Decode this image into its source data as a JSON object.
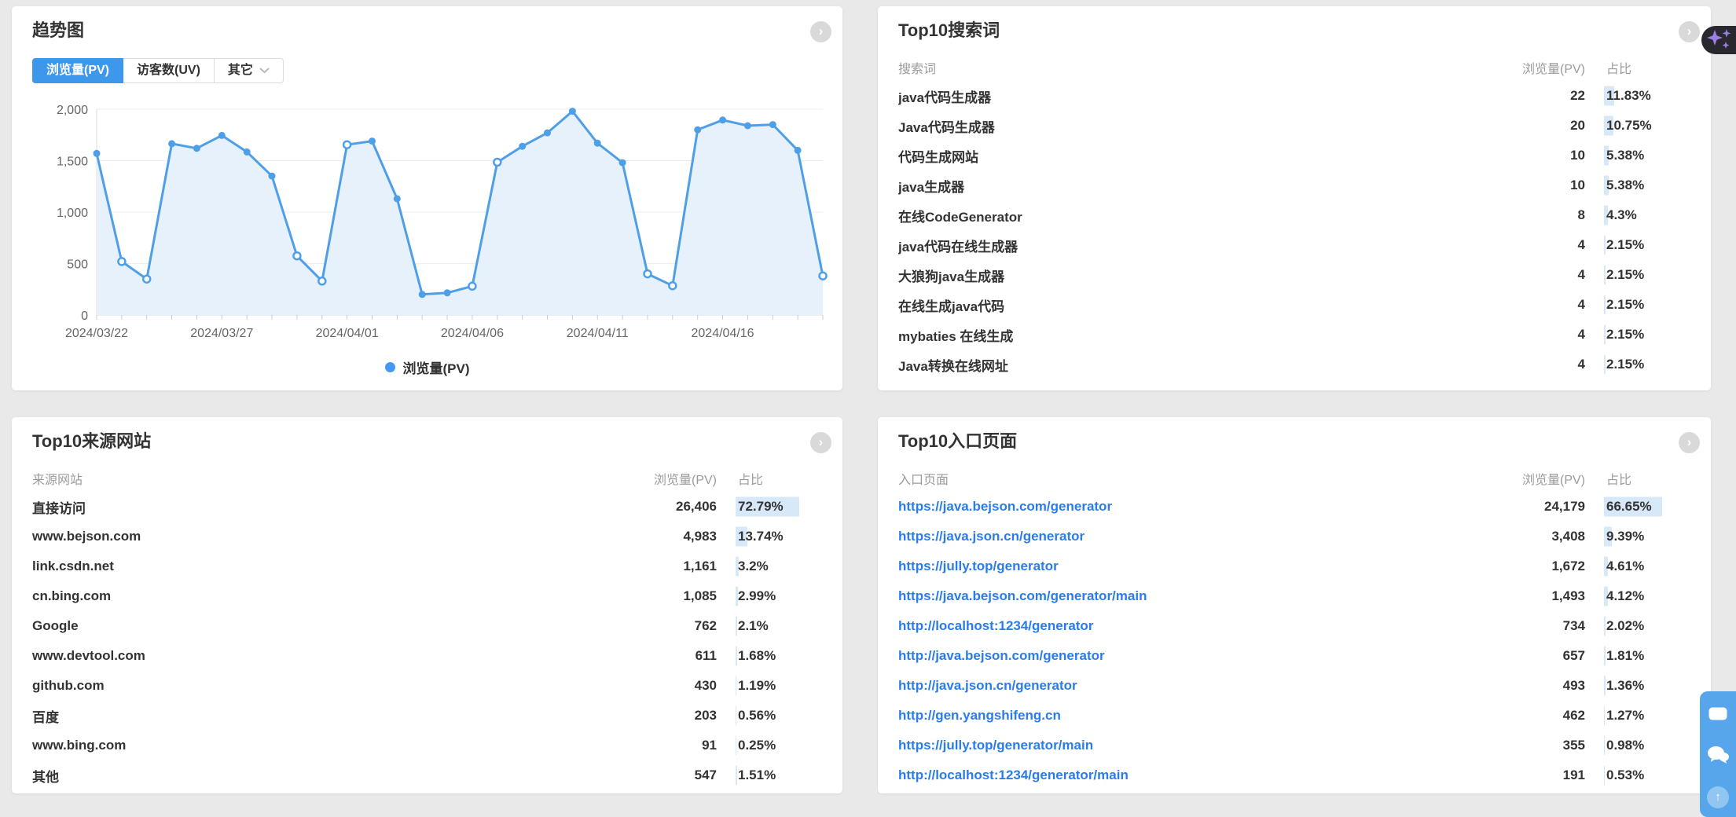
{
  "trend_panel": {
    "title": "趋势图",
    "tabs": [
      {
        "label": "浏览量(PV)",
        "active": true
      },
      {
        "label": "访客数(UV)",
        "active": false
      },
      {
        "label": "其它",
        "active": false,
        "dropdown": true
      }
    ],
    "legend": "浏览量(PV)",
    "chart_data": {
      "type": "line",
      "title": "趋势图",
      "x": [
        "2024/03/22",
        "2024/03/23",
        "2024/03/24",
        "2024/03/25",
        "2024/03/26",
        "2024/03/27",
        "2024/03/28",
        "2024/03/29",
        "2024/03/30",
        "2024/03/31",
        "2024/04/01",
        "2024/04/02",
        "2024/04/03",
        "2024/04/04",
        "2024/04/05",
        "2024/04/06",
        "2024/04/07",
        "2024/04/08",
        "2024/04/09",
        "2024/04/10",
        "2024/04/11",
        "2024/04/12",
        "2024/04/13",
        "2024/04/14",
        "2024/04/15",
        "2024/04/16",
        "2024/04/17",
        "2024/04/18",
        "2024/04/19",
        "2024/04/20"
      ],
      "x_tick_labels": [
        "2024/03/22",
        "2024/03/27",
        "2024/04/01",
        "2024/04/06",
        "2024/04/11",
        "2024/04/16"
      ],
      "x_tick_interval": 5,
      "series": [
        {
          "name": "浏览量(PV)",
          "values": [
            1570,
            520,
            350,
            1665,
            1620,
            1745,
            1585,
            1350,
            575,
            330,
            1655,
            1690,
            1130,
            200,
            215,
            280,
            1485,
            1640,
            1770,
            1980,
            1670,
            1480,
            400,
            285,
            1800,
            1895,
            1840,
            1850,
            1600,
            380
          ],
          "markers": [
            "filled",
            "hollow",
            "hollow",
            "filled",
            "filled",
            "filled",
            "filled",
            "filled",
            "hollow",
            "hollow",
            "hollow",
            "filled",
            "filled",
            "filled",
            "filled",
            "hollow",
            "hollow",
            "filled",
            "filled",
            "filled",
            "filled",
            "filled",
            "hollow",
            "hollow",
            "filled",
            "filled",
            "filled",
            "filled",
            "filled",
            "hollow"
          ]
        }
      ],
      "ylim": [
        0,
        2000
      ],
      "yticks": [
        0,
        500,
        1000,
        1500,
        2000
      ],
      "ytick_labels": [
        "0",
        "500",
        "1,000",
        "1,500",
        "2,000"
      ],
      "grid": "horizontal",
      "legend_position": "bottom",
      "colors": {
        "line": "#4f9fe8",
        "area": "#e7f1fb",
        "legend_dot": "#4599f2"
      }
    }
  },
  "search_panel": {
    "title": "Top10搜索词",
    "columns": {
      "name": "搜索词",
      "pv": "浏览量(PV)",
      "pct": "占比"
    },
    "rows": [
      {
        "name": "java代码生成器",
        "pv": "22",
        "pct": "11.83%",
        "pct_num": 11.83
      },
      {
        "name": "Java代码生成器",
        "pv": "20",
        "pct": "10.75%",
        "pct_num": 10.75
      },
      {
        "name": "代码生成网站",
        "pv": "10",
        "pct": "5.38%",
        "pct_num": 5.38
      },
      {
        "name": "java生成器",
        "pv": "10",
        "pct": "5.38%",
        "pct_num": 5.38
      },
      {
        "name": "在线CodeGenerator",
        "pv": "8",
        "pct": "4.3%",
        "pct_num": 4.3
      },
      {
        "name": "java代码在线生成器",
        "pv": "4",
        "pct": "2.15%",
        "pct_num": 2.15
      },
      {
        "name": "大狼狗java生成器",
        "pv": "4",
        "pct": "2.15%",
        "pct_num": 2.15
      },
      {
        "name": "在线生成java代码",
        "pv": "4",
        "pct": "2.15%",
        "pct_num": 2.15
      },
      {
        "name": "mybaties 在线生成",
        "pv": "4",
        "pct": "2.15%",
        "pct_num": 2.15
      },
      {
        "name": "Java转换在线网址",
        "pv": "4",
        "pct": "2.15%",
        "pct_num": 2.15
      }
    ]
  },
  "referrer_panel": {
    "title": "Top10来源网站",
    "columns": {
      "name": "来源网站",
      "pv": "浏览量(PV)",
      "pct": "占比"
    },
    "rows": [
      {
        "name": "直接访问",
        "pv": "26,406",
        "pct": "72.79%",
        "pct_num": 72.79
      },
      {
        "name": "www.bejson.com",
        "pv": "4,983",
        "pct": "13.74%",
        "pct_num": 13.74
      },
      {
        "name": "link.csdn.net",
        "pv": "1,161",
        "pct": "3.2%",
        "pct_num": 3.2
      },
      {
        "name": "cn.bing.com",
        "pv": "1,085",
        "pct": "2.99%",
        "pct_num": 2.99
      },
      {
        "name": "Google",
        "pv": "762",
        "pct": "2.1%",
        "pct_num": 2.1
      },
      {
        "name": "www.devtool.com",
        "pv": "611",
        "pct": "1.68%",
        "pct_num": 1.68
      },
      {
        "name": "github.com",
        "pv": "430",
        "pct": "1.19%",
        "pct_num": 1.19
      },
      {
        "name": "百度",
        "pv": "203",
        "pct": "0.56%",
        "pct_num": 0.56
      },
      {
        "name": "www.bing.com",
        "pv": "91",
        "pct": "0.25%",
        "pct_num": 0.25
      },
      {
        "name": "其他",
        "pv": "547",
        "pct": "1.51%",
        "pct_num": 1.51
      }
    ]
  },
  "entry_panel": {
    "title": "Top10入口页面",
    "columns": {
      "name": "入口页面",
      "pv": "浏览量(PV)",
      "pct": "占比"
    },
    "link_rows": true,
    "rows": [
      {
        "name": "https://java.bejson.com/generator",
        "pv": "24,179",
        "pct": "66.65%",
        "pct_num": 66.65
      },
      {
        "name": "https://java.json.cn/generator",
        "pv": "3,408",
        "pct": "9.39%",
        "pct_num": 9.39
      },
      {
        "name": "https://jully.top/generator",
        "pv": "1,672",
        "pct": "4.61%",
        "pct_num": 4.61
      },
      {
        "name": "https://java.bejson.com/generator/main",
        "pv": "1,493",
        "pct": "4.12%",
        "pct_num": 4.12
      },
      {
        "name": "http://localhost:1234/generator",
        "pv": "734",
        "pct": "2.02%",
        "pct_num": 2.02
      },
      {
        "name": "http://java.bejson.com/generator",
        "pv": "657",
        "pct": "1.81%",
        "pct_num": 1.81
      },
      {
        "name": "http://java.json.cn/generator",
        "pv": "493",
        "pct": "1.36%",
        "pct_num": 1.36
      },
      {
        "name": "http://gen.yangshifeng.cn",
        "pv": "462",
        "pct": "1.27%",
        "pct_num": 1.27
      },
      {
        "name": "https://jully.top/generator/main",
        "pv": "355",
        "pct": "0.98%",
        "pct_num": 0.98
      },
      {
        "name": "http://localhost:1234/generator/main",
        "pv": "191",
        "pct": "0.53%",
        "pct_num": 0.53
      }
    ]
  },
  "floating": {
    "ai_color": "#29282f",
    "sparkle_color": "#9d7fe3",
    "toolbar_color": "#57a6ec"
  }
}
